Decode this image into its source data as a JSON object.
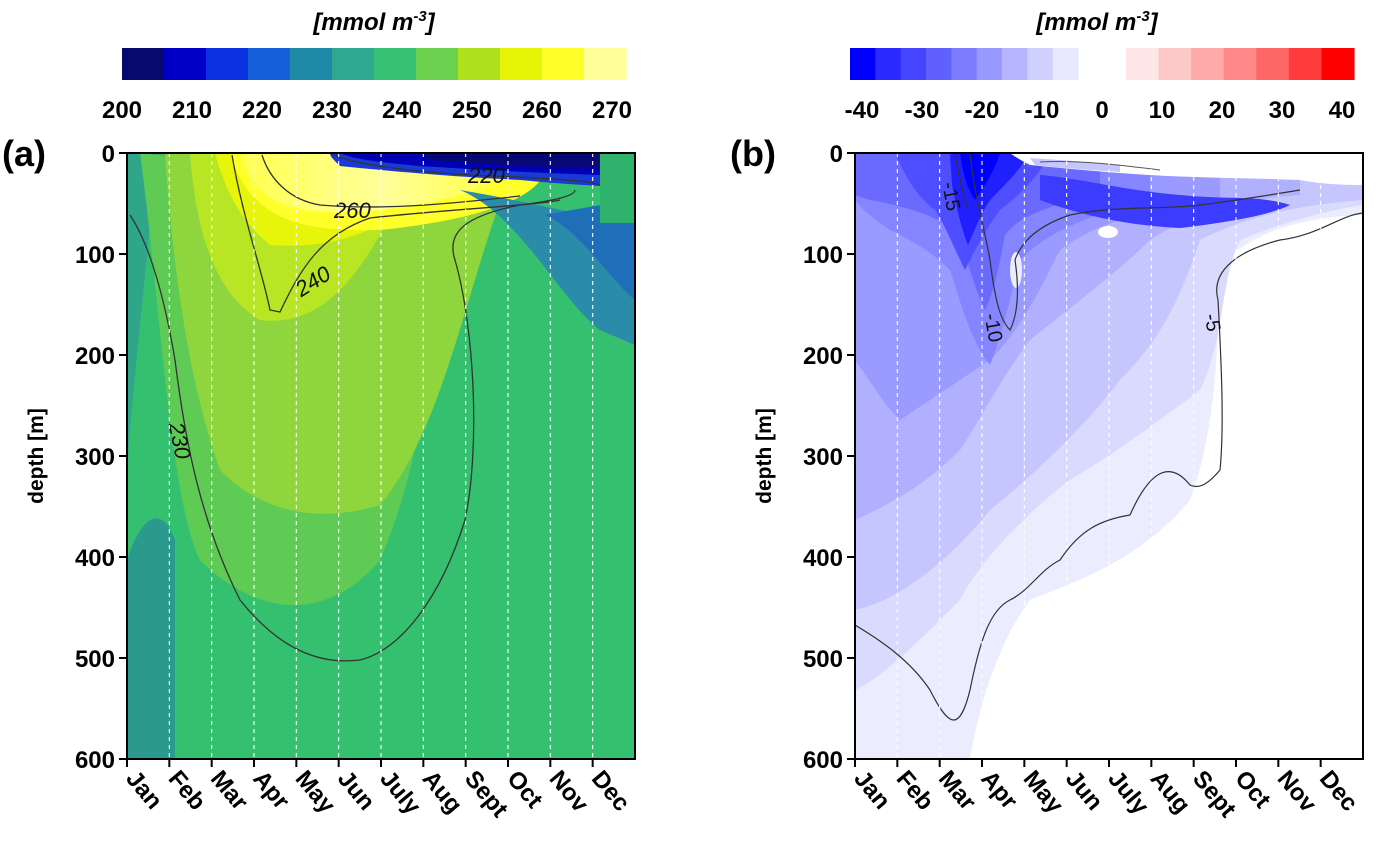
{
  "chart_data": [
    {
      "panel": "(a)",
      "type": "heatmap",
      "colorbar_title_main": "mmol m",
      "colorbar_title_exp": "-3",
      "colorbar_ticks": [
        "200",
        "210",
        "220",
        "230",
        "240",
        "250",
        "260",
        "270"
      ],
      "colorbar_range": [
        200,
        272
      ],
      "ylabel": "depth [m]",
      "ylim": [
        0,
        600
      ],
      "y_ticks": [
        "0",
        "100",
        "200",
        "300",
        "400",
        "500",
        "600"
      ],
      "x_ticks": [
        "Jan",
        "Feb",
        "Mar",
        "Apr",
        "May",
        "Jun",
        "July",
        "Aug",
        "Sept",
        "Oct",
        "Nov",
        "Dec"
      ],
      "contour_labels": [
        "220",
        "260",
        "240",
        "230"
      ],
      "background_value": 232,
      "colors": [
        "#08086e",
        "#0000c8",
        "#0a32e0",
        "#1560d8",
        "#1f8aa8",
        "#2fa890",
        "#36c073",
        "#6bd04e",
        "#aee01e",
        "#e6f505",
        "#ffff2a",
        "#ffff9a"
      ]
    },
    {
      "panel": "(b)",
      "type": "heatmap",
      "colorbar_title_main": "mmol m",
      "colorbar_title_exp": "-3",
      "colorbar_ticks": [
        "-40",
        "-30",
        "-20",
        "-10",
        "0",
        "10",
        "20",
        "30",
        "40"
      ],
      "colorbar_range": [
        -42,
        42
      ],
      "ylabel": "depth [m]",
      "ylim": [
        0,
        600
      ],
      "y_ticks": [
        "0",
        "100",
        "200",
        "300",
        "400",
        "500",
        "600"
      ],
      "x_ticks": [
        "Jan",
        "Feb",
        "Mar",
        "Apr",
        "May",
        "Jun",
        "July",
        "Aug",
        "Sept",
        "Oct",
        "Nov",
        "Dec"
      ],
      "contour_labels": [
        "-15",
        "-10",
        "-5"
      ],
      "colors_negative": [
        "#0000ff",
        "#2b2bff",
        "#4545ff",
        "#6060ff",
        "#7c7cff",
        "#9898ff",
        "#b4b4ff",
        "#d0d0ff",
        "#e8e8ff"
      ],
      "colors_positive": [
        "#ffe6e6",
        "#ffc8c8",
        "#ffaaaa",
        "#ff8888",
        "#ff6666",
        "#ff3c3c",
        "#ff0000"
      ]
    }
  ]
}
